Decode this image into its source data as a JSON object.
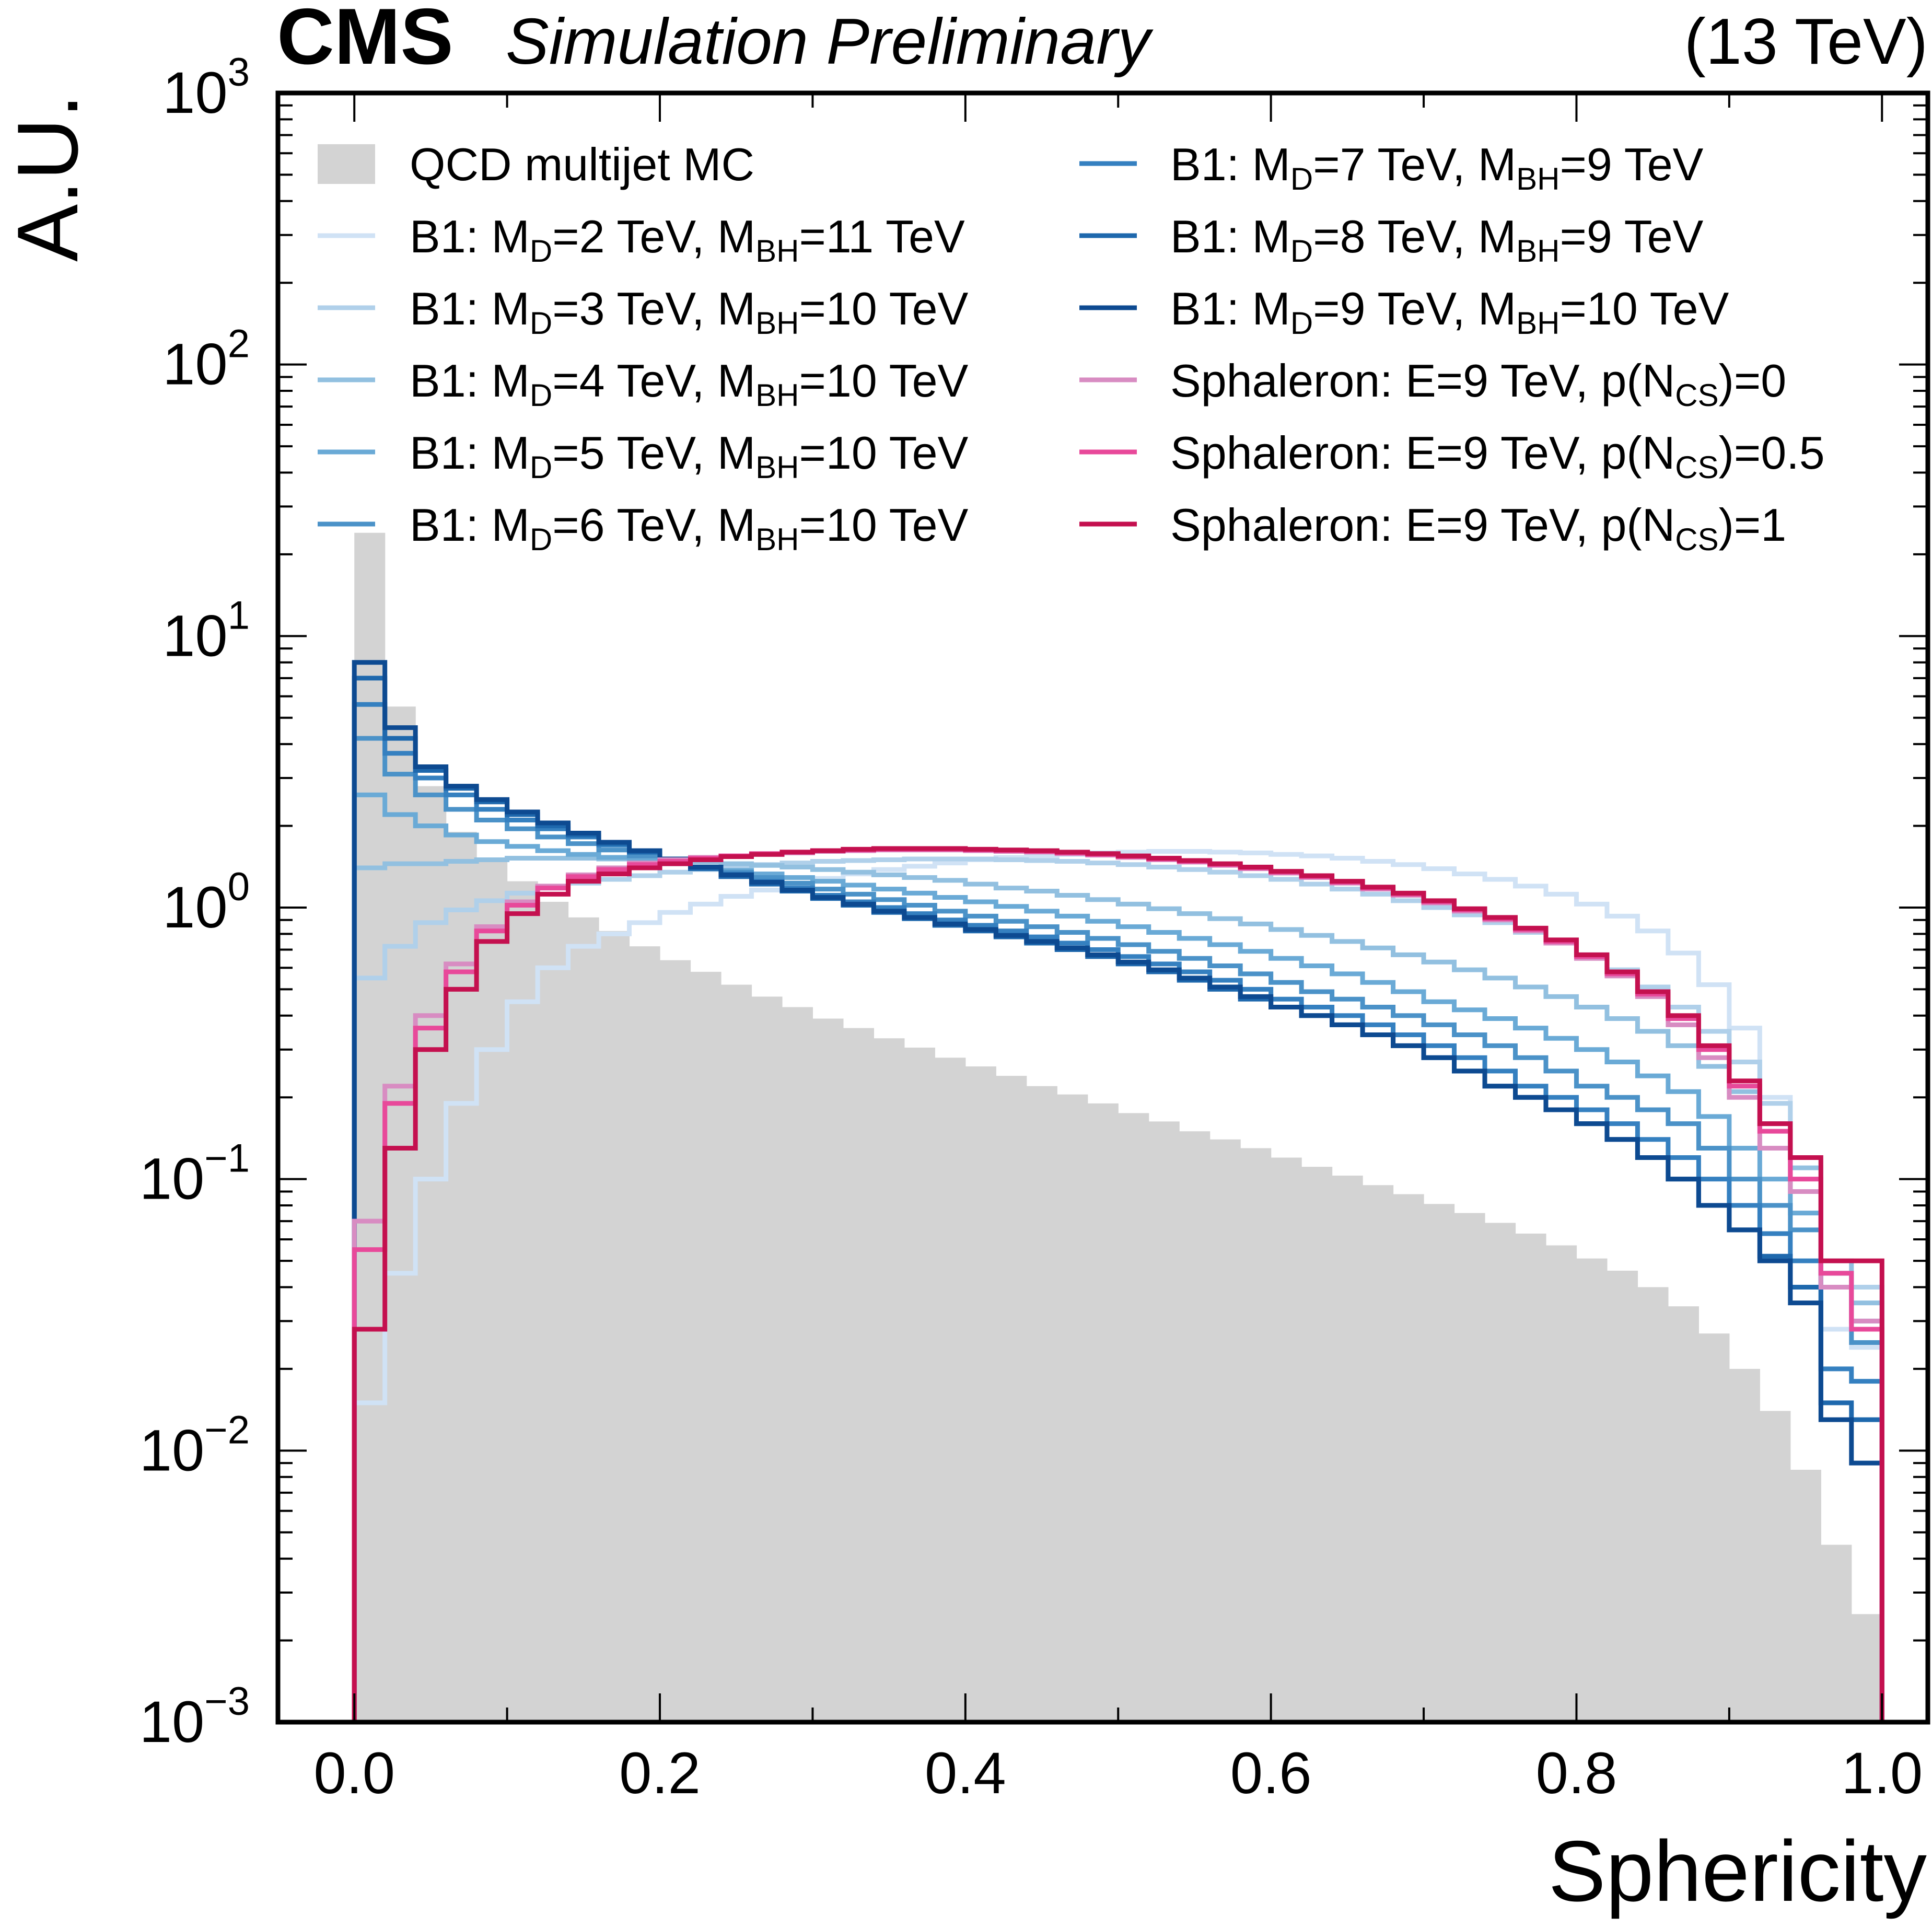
{
  "header": {
    "experiment": "CMS",
    "status": "Simulation Preliminary",
    "energy": "(13 TeV)"
  },
  "chart_data": {
    "type": "histogram",
    "title": "",
    "xlabel": "Sphericity",
    "ylabel": "A.U.",
    "xlim": [
      -0.05,
      1.03
    ],
    "ylim": [
      0.001,
      1000
    ],
    "yscale": "log",
    "grid": false,
    "legend_position": "top",
    "x_ticks": [
      "0.0",
      "0.2",
      "0.4",
      "0.6",
      "0.8",
      "1.0"
    ],
    "x_tick_values": [
      0,
      0.2,
      0.4,
      0.6,
      0.8,
      1.0
    ],
    "y_ticks": [
      {
        "base": "10",
        "exp": "−3",
        "value": 0.001
      },
      {
        "base": "10",
        "exp": "−2",
        "value": 0.01
      },
      {
        "base": "10",
        "exp": "−1",
        "value": 0.1
      },
      {
        "base": "10",
        "exp": "0",
        "value": 1
      },
      {
        "base": "10",
        "exp": "1",
        "value": 10
      },
      {
        "base": "10",
        "exp": "2",
        "value": 100
      },
      {
        "base": "10",
        "exp": "3",
        "value": 1000
      }
    ],
    "bin_edges": [
      0,
      0.02,
      0.04,
      0.06,
      0.08,
      0.1,
      0.12,
      0.14,
      0.16,
      0.18,
      0.2,
      0.22,
      0.24,
      0.26,
      0.28,
      0.3,
      0.32,
      0.34,
      0.36,
      0.38,
      0.4,
      0.42,
      0.44,
      0.46,
      0.48,
      0.5,
      0.52,
      0.54,
      0.56,
      0.58,
      0.6,
      0.62,
      0.64,
      0.66,
      0.68,
      0.7,
      0.72,
      0.74,
      0.76,
      0.78,
      0.8,
      0.82,
      0.84,
      0.86,
      0.88,
      0.9,
      0.92,
      0.94,
      0.96,
      0.98,
      1.0
    ],
    "background": {
      "name": "QCD multijet MC",
      "color": "#d3d3d3",
      "values": [
        24,
        5.5,
        2.8,
        1.9,
        1.5,
        1.25,
        1.05,
        0.92,
        0.82,
        0.72,
        0.64,
        0.58,
        0.52,
        0.47,
        0.43,
        0.39,
        0.36,
        0.33,
        0.305,
        0.28,
        0.26,
        0.24,
        0.22,
        0.205,
        0.19,
        0.175,
        0.163,
        0.15,
        0.14,
        0.13,
        0.12,
        0.111,
        0.103,
        0.095,
        0.088,
        0.081,
        0.075,
        0.069,
        0.063,
        0.057,
        0.051,
        0.046,
        0.04,
        0.034,
        0.027,
        0.02,
        0.014,
        0.0085,
        0.0045,
        0.0025
      ]
    },
    "series": [
      {
        "name": "B1: M_D=2 TeV, M_BH=11 TeV",
        "label_parts": [
          "B1: M",
          "D",
          "=2 TeV, M",
          "BH",
          "=11 TeV"
        ],
        "color": "#d0e2f5",
        "values": [
          0.015,
          0.045,
          0.1,
          0.19,
          0.3,
          0.45,
          0.6,
          0.72,
          0.8,
          0.88,
          0.96,
          1.03,
          1.1,
          1.16,
          1.22,
          1.28,
          1.33,
          1.38,
          1.42,
          1.46,
          1.5,
          1.53,
          1.55,
          1.57,
          1.59,
          1.6,
          1.61,
          1.61,
          1.6,
          1.59,
          1.57,
          1.55,
          1.52,
          1.48,
          1.44,
          1.39,
          1.33,
          1.27,
          1.2,
          1.12,
          1.03,
          0.93,
          0.82,
          0.68,
          0.52,
          0.36,
          0.2,
          0.09,
          0.028,
          0.024
        ]
      },
      {
        "name": "B1: M_D=3 TeV, M_BH=10 TeV",
        "label_parts": [
          "B1: M",
          "D",
          "=3 TeV, M",
          "BH",
          "=10 TeV"
        ],
        "color": "#b0d0ea",
        "values": [
          0.55,
          0.72,
          0.88,
          0.98,
          1.06,
          1.13,
          1.18,
          1.23,
          1.27,
          1.31,
          1.35,
          1.38,
          1.41,
          1.44,
          1.46,
          1.48,
          1.49,
          1.5,
          1.51,
          1.51,
          1.51,
          1.5,
          1.49,
          1.48,
          1.46,
          1.44,
          1.41,
          1.38,
          1.35,
          1.31,
          1.27,
          1.22,
          1.17,
          1.12,
          1.06,
          1.0,
          0.94,
          0.88,
          0.81,
          0.74,
          0.67,
          0.59,
          0.51,
          0.43,
          0.35,
          0.27,
          0.19,
          0.12,
          0.045,
          0.04
        ]
      },
      {
        "name": "B1: M_D=4 TeV, M_BH=10 TeV",
        "label_parts": [
          "B1: M",
          "D",
          "=4 TeV, M",
          "BH",
          "=10 TeV"
        ],
        "color": "#92c0e0",
        "values": [
          1.4,
          1.45,
          1.45,
          1.48,
          1.5,
          1.52,
          1.52,
          1.52,
          1.51,
          1.5,
          1.49,
          1.47,
          1.45,
          1.43,
          1.41,
          1.38,
          1.35,
          1.32,
          1.29,
          1.26,
          1.22,
          1.18,
          1.15,
          1.11,
          1.07,
          1.03,
          0.99,
          0.95,
          0.91,
          0.87,
          0.83,
          0.79,
          0.75,
          0.71,
          0.67,
          0.63,
          0.59,
          0.55,
          0.51,
          0.47,
          0.43,
          0.39,
          0.35,
          0.31,
          0.26,
          0.21,
          0.16,
          0.11,
          0.05,
          0.035
        ]
      },
      {
        "name": "B1: M_D=5 TeV, M_BH=10 TeV",
        "label_parts": [
          "B1: M",
          "D",
          "=5 TeV, M",
          "BH",
          "=10 TeV"
        ],
        "color": "#6aaad6",
        "values": [
          2.6,
          2.2,
          2.0,
          1.85,
          1.75,
          1.68,
          1.62,
          1.57,
          1.53,
          1.49,
          1.45,
          1.41,
          1.37,
          1.33,
          1.29,
          1.25,
          1.21,
          1.17,
          1.13,
          1.09,
          1.05,
          1.01,
          0.97,
          0.93,
          0.89,
          0.85,
          0.81,
          0.77,
          0.73,
          0.69,
          0.65,
          0.61,
          0.57,
          0.53,
          0.49,
          0.45,
          0.42,
          0.39,
          0.36,
          0.33,
          0.3,
          0.27,
          0.24,
          0.21,
          0.17,
          0.13,
          0.1,
          0.075,
          0.045,
          0.03
        ]
      },
      {
        "name": "B1: M_D=6 TeV, M_BH=10 TeV",
        "label_parts": [
          "B1: M",
          "D",
          "=6 TeV, M",
          "BH",
          "=10 TeV"
        ],
        "color": "#4b92c8",
        "values": [
          4.2,
          3.1,
          2.6,
          2.3,
          2.1,
          1.95,
          1.82,
          1.72,
          1.63,
          1.55,
          1.48,
          1.41,
          1.35,
          1.29,
          1.23,
          1.17,
          1.12,
          1.07,
          1.02,
          0.97,
          0.93,
          0.89,
          0.85,
          0.81,
          0.77,
          0.73,
          0.69,
          0.65,
          0.61,
          0.57,
          0.53,
          0.49,
          0.46,
          0.43,
          0.4,
          0.37,
          0.34,
          0.31,
          0.28,
          0.25,
          0.22,
          0.2,
          0.18,
          0.16,
          0.13,
          0.1,
          0.08,
          0.065,
          0.04,
          0.025
        ]
      },
      {
        "name": "B1: M_D=7 TeV, M_BH=9 TeV",
        "label_parts": [
          "B1: M",
          "D",
          "=7 TeV, M",
          "BH",
          "=9 TeV"
        ],
        "color": "#3580c0",
        "values": [
          5.6,
          3.7,
          3.0,
          2.6,
          2.3,
          2.1,
          1.95,
          1.82,
          1.7,
          1.6,
          1.5,
          1.41,
          1.33,
          1.25,
          1.18,
          1.11,
          1.05,
          1.0,
          0.95,
          0.9,
          0.86,
          0.82,
          0.78,
          0.74,
          0.7,
          0.66,
          0.62,
          0.58,
          0.54,
          0.5,
          0.46,
          0.43,
          0.4,
          0.37,
          0.34,
          0.31,
          0.28,
          0.25,
          0.22,
          0.2,
          0.18,
          0.16,
          0.14,
          0.12,
          0.1,
          0.08,
          0.063,
          0.05,
          0.02,
          0.018
        ]
      },
      {
        "name": "B1: M_D=8 TeV, M_BH=9 TeV",
        "label_parts": [
          "B1: M",
          "D",
          "=8 TeV, M",
          "BH",
          "=9 TeV"
        ],
        "color": "#1e68ad",
        "values": [
          7.0,
          4.2,
          3.2,
          2.75,
          2.45,
          2.2,
          2.0,
          1.85,
          1.72,
          1.6,
          1.49,
          1.39,
          1.3,
          1.22,
          1.15,
          1.08,
          1.02,
          0.96,
          0.91,
          0.86,
          0.82,
          0.78,
          0.74,
          0.7,
          0.66,
          0.62,
          0.58,
          0.54,
          0.5,
          0.46,
          0.43,
          0.4,
          0.37,
          0.34,
          0.31,
          0.28,
          0.25,
          0.22,
          0.2,
          0.18,
          0.16,
          0.14,
          0.12,
          0.1,
          0.08,
          0.065,
          0.052,
          0.04,
          0.015,
          0.013
        ]
      },
      {
        "name": "B1: M_D=9 TeV, M_BH=10 TeV",
        "label_parts": [
          "B1: M",
          "D",
          "=9 TeV, M",
          "BH",
          "=10 TeV"
        ],
        "color": "#0d4a91",
        "values": [
          8.0,
          4.6,
          3.3,
          2.8,
          2.5,
          2.25,
          2.05,
          1.88,
          1.74,
          1.62,
          1.51,
          1.41,
          1.32,
          1.24,
          1.16,
          1.09,
          1.03,
          0.97,
          0.92,
          0.87,
          0.83,
          0.79,
          0.75,
          0.71,
          0.67,
          0.63,
          0.59,
          0.55,
          0.51,
          0.47,
          0.43,
          0.4,
          0.37,
          0.34,
          0.31,
          0.28,
          0.25,
          0.22,
          0.2,
          0.18,
          0.16,
          0.14,
          0.12,
          0.1,
          0.08,
          0.065,
          0.05,
          0.035,
          0.013,
          0.009
        ]
      },
      {
        "name": "Sphaleron: E=9 TeV, p(N_CS)=0",
        "label_parts": [
          "Sphaleron: E=9 TeV, p(N",
          "CS",
          ")=0"
        ],
        "color": "#d88cc2",
        "values": [
          0.07,
          0.22,
          0.4,
          0.62,
          0.85,
          1.05,
          1.2,
          1.32,
          1.4,
          1.46,
          1.5,
          1.53,
          1.55,
          1.57,
          1.59,
          1.61,
          1.62,
          1.63,
          1.63,
          1.63,
          1.62,
          1.61,
          1.6,
          1.58,
          1.56,
          1.53,
          1.5,
          1.47,
          1.43,
          1.39,
          1.34,
          1.29,
          1.23,
          1.17,
          1.11,
          1.04,
          0.97,
          0.9,
          0.82,
          0.74,
          0.65,
          0.56,
          0.47,
          0.37,
          0.28,
          0.2,
          0.13,
          0.09,
          0.04,
          0.03
        ]
      },
      {
        "name": "Sphaleron: E=9 TeV, p(N_CS)=0.5",
        "label_parts": [
          "Sphaleron: E=9 TeV, p(N",
          "CS",
          ")=0.5"
        ],
        "color": "#e8499a",
        "values": [
          0.055,
          0.19,
          0.36,
          0.58,
          0.82,
          1.02,
          1.18,
          1.3,
          1.38,
          1.44,
          1.48,
          1.52,
          1.55,
          1.58,
          1.6,
          1.62,
          1.63,
          1.64,
          1.64,
          1.64,
          1.63,
          1.62,
          1.61,
          1.59,
          1.57,
          1.54,
          1.51,
          1.48,
          1.44,
          1.4,
          1.35,
          1.3,
          1.24,
          1.18,
          1.12,
          1.05,
          0.98,
          0.91,
          0.83,
          0.75,
          0.66,
          0.57,
          0.48,
          0.39,
          0.3,
          0.22,
          0.15,
          0.1,
          0.045,
          0.028
        ]
      },
      {
        "name": "Sphaleron: E=9 TeV, p(N_CS)=1",
        "label_parts": [
          "Sphaleron: E=9 TeV, p(N",
          "CS",
          ")=1"
        ],
        "color": "#c4104f",
        "values": [
          0.028,
          0.13,
          0.3,
          0.5,
          0.75,
          0.95,
          1.12,
          1.25,
          1.33,
          1.4,
          1.45,
          1.5,
          1.54,
          1.57,
          1.6,
          1.62,
          1.64,
          1.65,
          1.65,
          1.65,
          1.64,
          1.63,
          1.62,
          1.6,
          1.58,
          1.55,
          1.52,
          1.49,
          1.45,
          1.41,
          1.36,
          1.31,
          1.25,
          1.19,
          1.13,
          1.06,
          0.99,
          0.92,
          0.84,
          0.76,
          0.67,
          0.58,
          0.49,
          0.4,
          0.31,
          0.23,
          0.16,
          0.12,
          0.05,
          0.05
        ]
      }
    ]
  }
}
